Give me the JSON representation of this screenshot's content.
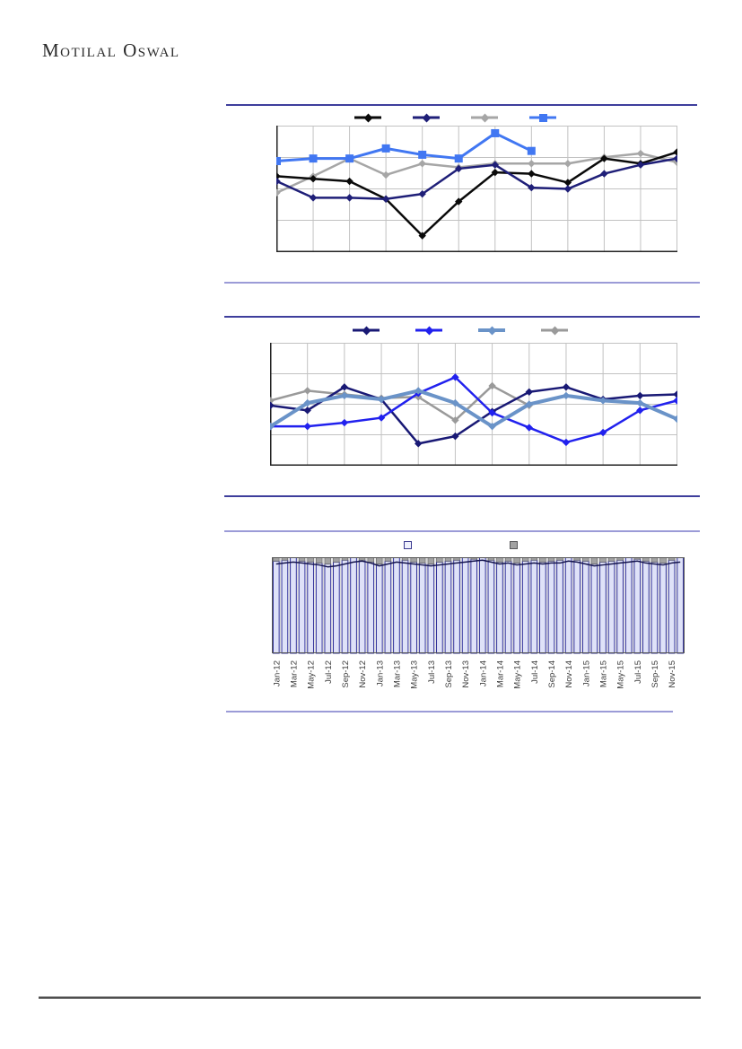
{
  "brand": {
    "logo_text": "Motilal Oswal"
  },
  "colors": {
    "divider_navy": "#3e3e9c",
    "divider_purple": "#9b9bd7",
    "footer_rule": "#4f4f4f",
    "gridline": "#c2c2c2"
  },
  "chart_data": [
    {
      "type": "line",
      "title": "",
      "xlabel": "",
      "ylabel": "",
      "ylim": [
        0,
        100
      ],
      "grid": {
        "v": 12,
        "h": 5,
        "on": true
      },
      "legend_position": "top-center",
      "legend": [
        {
          "label": "",
          "color": "#0a0a0a",
          "marker": "diamond",
          "lw": 3
        },
        {
          "label": "",
          "color": "#1f1f78",
          "marker": "diamond",
          "lw": 3
        },
        {
          "label": "",
          "color": "#a6a6a6",
          "marker": "diamond",
          "lw": 3
        },
        {
          "label": "",
          "color": "#4177f2",
          "marker": "square",
          "lw": 3
        }
      ],
      "series": [
        {
          "name": "series-gray",
          "color": "#a6a6a6",
          "marker": "diamond",
          "width": 2.5,
          "values": [
            47,
            60,
            74,
            61,
            70,
            67,
            70,
            70,
            70,
            75,
            78,
            71
          ]
        },
        {
          "name": "series-black",
          "color": "#0a0a0a",
          "marker": "diamond",
          "width": 2.5,
          "values": [
            60,
            58,
            56,
            42,
            13,
            40,
            63,
            62,
            55,
            74,
            70,
            79
          ]
        },
        {
          "name": "series-navy",
          "color": "#1f1f78",
          "marker": "diamond",
          "width": 2.5,
          "values": [
            56,
            43,
            43,
            42,
            46,
            66,
            69,
            51,
            50,
            62,
            69,
            74
          ]
        },
        {
          "name": "series-blue",
          "color": "#4177f2",
          "marker": "square",
          "width": 3,
          "values": [
            72,
            74,
            74,
            82,
            77,
            74,
            94,
            80
          ]
        }
      ]
    },
    {
      "type": "line",
      "title": "",
      "xlabel": "",
      "ylabel": "",
      "ylim": [
        0,
        100
      ],
      "grid": {
        "v": 12,
        "h": 5,
        "on": true
      },
      "legend_position": "top-center",
      "legend": [
        {
          "label": "",
          "color": "#191975",
          "marker": "diamond",
          "lw": 3
        },
        {
          "label": "",
          "color": "#2121ee",
          "marker": "diamond",
          "lw": 3
        },
        {
          "label": "",
          "color": "#6a93c8",
          "marker": "diamond",
          "lw": 4
        },
        {
          "label": "",
          "color": "#9a9a9a",
          "marker": "diamond",
          "lw": 3
        }
      ],
      "series": [
        {
          "name": "series-gray",
          "color": "#9a9a9a",
          "marker": "diamond",
          "width": 2.5,
          "values": [
            53,
            61,
            58,
            55,
            56,
            37,
            65,
            49
          ]
        },
        {
          "name": "series-navy",
          "color": "#191975",
          "marker": "diamond",
          "width": 2.5,
          "values": [
            49,
            45,
            64,
            54,
            18,
            24,
            44,
            60,
            64,
            54,
            57,
            58
          ]
        },
        {
          "name": "series-blue",
          "color": "#2121ee",
          "marker": "diamond",
          "width": 2.5,
          "values": [
            32,
            32,
            35,
            39,
            59,
            72,
            43,
            31,
            19,
            27,
            45,
            53
          ]
        },
        {
          "name": "series-steelblue",
          "color": "#6a93c8",
          "marker": "diamond",
          "width": 4,
          "values": [
            32,
            51,
            57,
            54,
            61,
            51,
            32,
            50,
            57,
            53,
            51,
            38
          ]
        }
      ]
    },
    {
      "type": "stacked-bar-line",
      "title": "",
      "n_bars": 48,
      "ylim": [
        0,
        100
      ],
      "x_tick_labels": [
        "Jan-12",
        "Mar-12",
        "May-12",
        "Jul-12",
        "Sep-12",
        "Nov-12",
        "Jan-13",
        "Mar-13",
        "May-13",
        "Jul-13",
        "Sep-13",
        "Nov-13",
        "Jan-14",
        "Mar-14",
        "May-14",
        "Jul-14",
        "Sep-14",
        "Nov-14",
        "Jan-15",
        "Mar-15",
        "May-15",
        "Jul-15",
        "Sep-15",
        "Nov-15"
      ],
      "bar_light_values": [
        96,
        97,
        100,
        96,
        95,
        94,
        93,
        95,
        97,
        100,
        97,
        95,
        93,
        96,
        100,
        97,
        95,
        94,
        93,
        95,
        96,
        97,
        100,
        98,
        100,
        97,
        95,
        96,
        94,
        96,
        97,
        95,
        96,
        97,
        100,
        97,
        96,
        93,
        95,
        96,
        97,
        100,
        98,
        96,
        95,
        94,
        97,
        100
      ],
      "bar_gray_values": [
        4,
        3,
        0,
        4,
        5,
        6,
        7,
        5,
        3,
        0,
        3,
        5,
        7,
        4,
        0,
        3,
        5,
        6,
        7,
        5,
        4,
        3,
        0,
        2,
        0,
        3,
        5,
        4,
        6,
        4,
        3,
        5,
        4,
        3,
        0,
        3,
        4,
        7,
        5,
        4,
        3,
        0,
        2,
        4,
        5,
        6,
        3,
        0
      ],
      "line_values": [
        93,
        94,
        95,
        94,
        93,
        92,
        90,
        91,
        93,
        95,
        96,
        94,
        91,
        93,
        95,
        94,
        93,
        92,
        91,
        92,
        93,
        94,
        95,
        96,
        97,
        95,
        93,
        94,
        92,
        93,
        94,
        93,
        94,
        94,
        96,
        95,
        93,
        91,
        92,
        93,
        94,
        95,
        96,
        94,
        93,
        92,
        94,
        95
      ],
      "colors": {
        "bar_fill": "#dfe2f8",
        "bar_border": "#30309a",
        "cap_fill": "#a3a3a3",
        "cap_border": "#6e6e6e",
        "line": "#16164f",
        "tick_text": "#3c3c3c"
      },
      "legend": [
        {
          "label": "",
          "fill": "#eef0fc",
          "border": "#3a3a8f"
        },
        {
          "label": "",
          "fill": "#a3a3a3",
          "border": "#58585a"
        }
      ]
    }
  ]
}
